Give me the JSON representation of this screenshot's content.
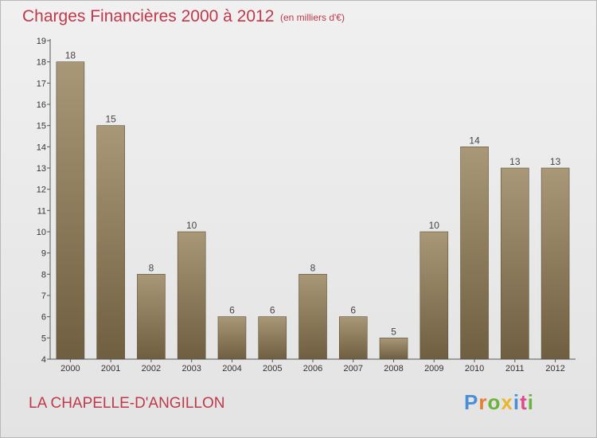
{
  "header": {
    "title": "Charges Financières 2000 à 2012",
    "subtitle": "(en milliers d'€)"
  },
  "footer": {
    "place_name": "LA CHAPELLE-D'ANGILLON",
    "logo_text": "Proxiti"
  },
  "colors": {
    "title": "#c0394b",
    "bar_light": "#a89878",
    "bar_dark": "#6f5f40",
    "logo_letters": [
      "#4a8fd6",
      "#e87d2a",
      "#6bb33c",
      "#e8b72a",
      "#4a8fd6",
      "#e04a8a",
      "#6bb33c"
    ]
  },
  "chart_data": {
    "type": "bar",
    "categories": [
      "2000",
      "2001",
      "2002",
      "2003",
      "2004",
      "2005",
      "2006",
      "2007",
      "2008",
      "2009",
      "2010",
      "2011",
      "2012"
    ],
    "values": [
      18,
      15,
      8,
      10,
      6,
      6,
      8,
      6,
      5,
      10,
      14,
      13,
      13
    ],
    "y_ticks": [
      4,
      5,
      6,
      7,
      8,
      9,
      10,
      11,
      12,
      13,
      14,
      15,
      16,
      17,
      18,
      19
    ],
    "ylim": [
      4,
      19
    ],
    "xlabel": "",
    "ylabel": "",
    "grid": false,
    "legend": "none",
    "data_labels": true
  }
}
